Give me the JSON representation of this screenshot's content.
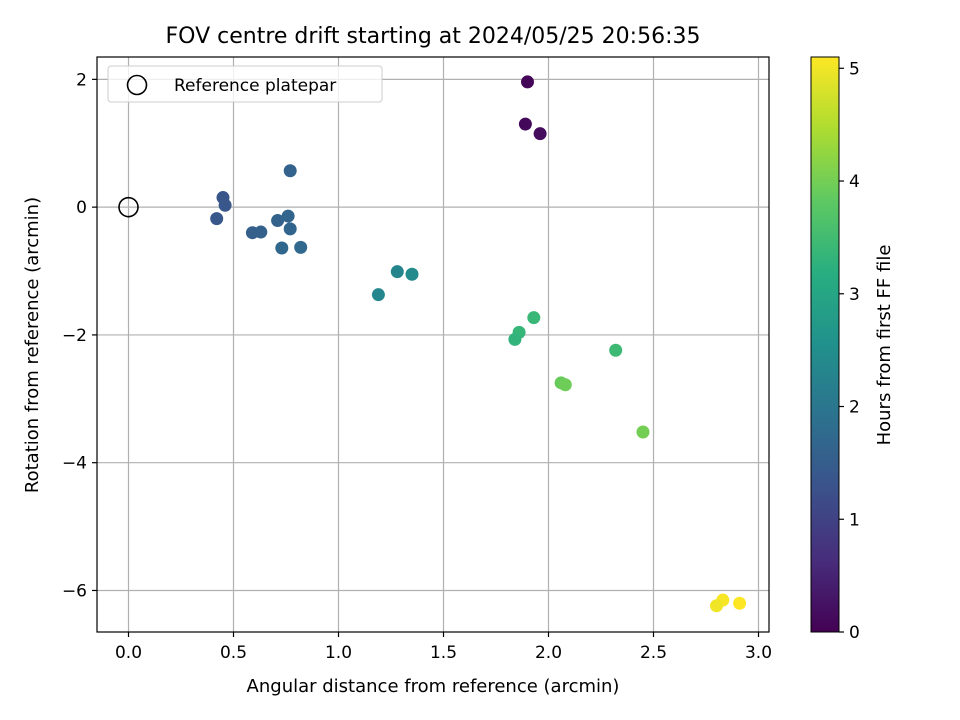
{
  "chart_data": {
    "type": "scatter",
    "title": "FOV centre drift starting at 2024/05/25 20:56:35",
    "xlabel": "Angular distance from reference (arcmin)",
    "ylabel": "Rotation from reference (arcmin)",
    "xlim": [
      -0.15,
      3.05
    ],
    "ylim": [
      -6.65,
      2.35
    ],
    "xticks": [
      0.0,
      0.5,
      1.0,
      1.5,
      2.0,
      2.5,
      3.0
    ],
    "xtick_labels": [
      "0.0",
      "0.5",
      "1.0",
      "1.5",
      "2.0",
      "2.5",
      "3.0"
    ],
    "yticks": [
      2,
      0,
      -2,
      -4,
      -6
    ],
    "ytick_labels": [
      "2",
      "0",
      "−2",
      "−4",
      "−6"
    ],
    "grid": true,
    "legend": {
      "position": "top-left",
      "entries": [
        {
          "label": "Reference platepar",
          "marker": "open-circle"
        }
      ]
    },
    "reference_point": {
      "x": 0.0,
      "y": 0.0
    },
    "colorbar": {
      "label": "Hours from first FF file",
      "range": [
        0,
        5.1
      ],
      "ticks": [
        0,
        1,
        2,
        3,
        4,
        5
      ],
      "tick_labels": [
        "0",
        "1",
        "2",
        "3",
        "4",
        "5"
      ],
      "colormap": "viridis"
    },
    "points": [
      {
        "x": 1.9,
        "y": 1.96,
        "c": 0.05
      },
      {
        "x": 1.89,
        "y": 1.3,
        "c": 0.1
      },
      {
        "x": 1.96,
        "y": 1.15,
        "c": 0.15
      },
      {
        "x": 0.45,
        "y": 0.15,
        "c": 1.35
      },
      {
        "x": 0.46,
        "y": 0.03,
        "c": 1.38
      },
      {
        "x": 0.42,
        "y": -0.18,
        "c": 1.4
      },
      {
        "x": 0.77,
        "y": 0.57,
        "c": 1.6
      },
      {
        "x": 0.59,
        "y": -0.4,
        "c": 1.55
      },
      {
        "x": 0.63,
        "y": -0.39,
        "c": 1.58
      },
      {
        "x": 0.71,
        "y": -0.21,
        "c": 1.62
      },
      {
        "x": 0.76,
        "y": -0.14,
        "c": 1.65
      },
      {
        "x": 0.77,
        "y": -0.34,
        "c": 1.66
      },
      {
        "x": 0.73,
        "y": -0.64,
        "c": 1.7
      },
      {
        "x": 0.82,
        "y": -0.63,
        "c": 1.72
      },
      {
        "x": 1.28,
        "y": -1.01,
        "c": 2.3
      },
      {
        "x": 1.35,
        "y": -1.05,
        "c": 2.4
      },
      {
        "x": 1.19,
        "y": -1.37,
        "c": 2.35
      },
      {
        "x": 1.93,
        "y": -1.73,
        "c": 3.4
      },
      {
        "x": 1.86,
        "y": -1.96,
        "c": 3.35
      },
      {
        "x": 1.84,
        "y": -2.07,
        "c": 3.3
      },
      {
        "x": 2.32,
        "y": -2.24,
        "c": 3.45
      },
      {
        "x": 2.06,
        "y": -2.75,
        "c": 3.9
      },
      {
        "x": 2.08,
        "y": -2.78,
        "c": 3.95
      },
      {
        "x": 2.45,
        "y": -3.52,
        "c": 4.0
      },
      {
        "x": 2.83,
        "y": -6.15,
        "c": 5.05
      },
      {
        "x": 2.8,
        "y": -6.24,
        "c": 5.0
      },
      {
        "x": 2.91,
        "y": -6.2,
        "c": 5.1
      }
    ]
  }
}
